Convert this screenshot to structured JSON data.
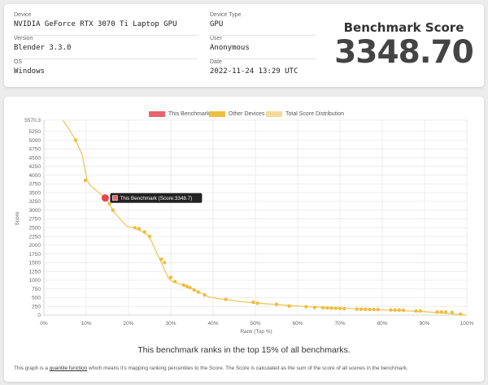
{
  "info": {
    "device": {
      "label": "Device",
      "value": "NVIDIA GeForce RTX 3070 Ti Laptop GPU"
    },
    "version": {
      "label": "Version",
      "value": "Blender 3.3.0"
    },
    "os": {
      "label": "OS",
      "value": "Windows"
    },
    "device_type": {
      "label": "Device Type",
      "value": "GPU"
    },
    "user": {
      "label": "User",
      "value": "Anonymous"
    },
    "date": {
      "label": "Date",
      "value": "2022-11-24 13:29 UTC"
    }
  },
  "score": {
    "title": "Benchmark Score",
    "value": "3348.70"
  },
  "legend": [
    {
      "label": "This Benchmark",
      "color": "#e8656b"
    },
    {
      "label": "Other Devices",
      "color": "#f0bd3e"
    },
    {
      "label": "Total Score Distribution",
      "color": "#f4d99a"
    }
  ],
  "tooltip": "This Benchmark (Score:3348.7)",
  "summary": "This benchmark ranks in the top 15% of all benchmarks.",
  "note": {
    "before": "This graph is a ",
    "link": "quantile function",
    "after": " which means it's mapping ranking percentiles to the Score. The Score is calculated as the sum of the score of all scenes in the benchmark."
  },
  "chart_data": {
    "type": "line",
    "xlabel": "Rank (Top %)",
    "ylabel": "Score",
    "xlim": [
      0,
      100
    ],
    "ylim": [
      0,
      5570.3
    ],
    "x_ticks": [
      "0%",
      "10%",
      "20%",
      "30%",
      "40%",
      "50%",
      "60%",
      "70%",
      "80%",
      "90%",
      "100%"
    ],
    "y_ticks": [
      "0",
      "250",
      "500",
      "750",
      "1000",
      "1250",
      "1500",
      "1750",
      "2000",
      "2250",
      "2500",
      "2750",
      "3000",
      "3250",
      "3500",
      "3750",
      "4000",
      "4250",
      "4500",
      "4750",
      "5000",
      "5250",
      "5570.3"
    ],
    "grid": true,
    "series": [
      {
        "name": "Total Score Distribution",
        "color": "#f0c75e",
        "points": [
          [
            4.5,
            5570.3
          ],
          [
            6,
            5300
          ],
          [
            7.5,
            5000
          ],
          [
            9,
            4600
          ],
          [
            9.8,
            4100
          ],
          [
            10.2,
            3850
          ],
          [
            11,
            3700
          ],
          [
            12.5,
            3550
          ],
          [
            14.5,
            3348.7
          ],
          [
            15.6,
            3150
          ],
          [
            16.2,
            3000
          ],
          [
            18,
            2750
          ],
          [
            19.5,
            2550
          ],
          [
            21.5,
            2480
          ],
          [
            23,
            2400
          ],
          [
            24.7,
            2280
          ],
          [
            25.5,
            2100
          ],
          [
            27,
            1700
          ],
          [
            28.5,
            1300
          ],
          [
            29.5,
            1050
          ],
          [
            30.5,
            950
          ],
          [
            32.5,
            880
          ],
          [
            34,
            820
          ],
          [
            36,
            700
          ],
          [
            39,
            520
          ],
          [
            43,
            440
          ],
          [
            48,
            370
          ],
          [
            53,
            320
          ],
          [
            60,
            260
          ],
          [
            70,
            200
          ],
          [
            80,
            150
          ],
          [
            90,
            100
          ],
          [
            100,
            0
          ]
        ]
      },
      {
        "name": "Other Devices",
        "color": "#f0bd3e",
        "points": [
          [
            7.5,
            5000
          ],
          [
            9.8,
            3850
          ],
          [
            15.5,
            3180
          ],
          [
            16.3,
            3000
          ],
          [
            21.5,
            2500
          ],
          [
            22.5,
            2470
          ],
          [
            23.8,
            2380
          ],
          [
            25,
            2250
          ],
          [
            27.8,
            1600
          ],
          [
            28.5,
            1500
          ],
          [
            30,
            1080
          ],
          [
            31,
            960
          ],
          [
            33,
            860
          ],
          [
            33.8,
            820
          ],
          [
            34.5,
            790
          ],
          [
            35.5,
            720
          ],
          [
            36.5,
            660
          ],
          [
            38,
            580
          ],
          [
            43,
            450
          ],
          [
            49.5,
            370
          ],
          [
            50.5,
            340
          ],
          [
            55,
            310
          ],
          [
            58,
            260
          ],
          [
            62,
            240
          ],
          [
            64,
            220
          ],
          [
            66,
            210
          ],
          [
            67,
            205
          ],
          [
            68,
            200
          ],
          [
            69,
            195
          ],
          [
            70,
            190
          ],
          [
            71,
            185
          ],
          [
            74,
            170
          ],
          [
            75,
            170
          ],
          [
            76,
            168
          ],
          [
            77,
            165
          ],
          [
            78,
            162
          ],
          [
            79,
            160
          ],
          [
            82,
            150
          ],
          [
            83,
            148
          ],
          [
            84,
            145
          ],
          [
            85,
            140
          ],
          [
            88,
            120
          ],
          [
            89,
            118
          ],
          [
            93,
            90
          ],
          [
            94,
            88
          ],
          [
            95,
            85
          ],
          [
            96.5,
            80
          ],
          [
            98.5,
            30
          ]
        ]
      },
      {
        "name": "This Benchmark",
        "color": "#e8656b",
        "points": [
          [
            14.5,
            3348.7
          ]
        ]
      }
    ]
  }
}
